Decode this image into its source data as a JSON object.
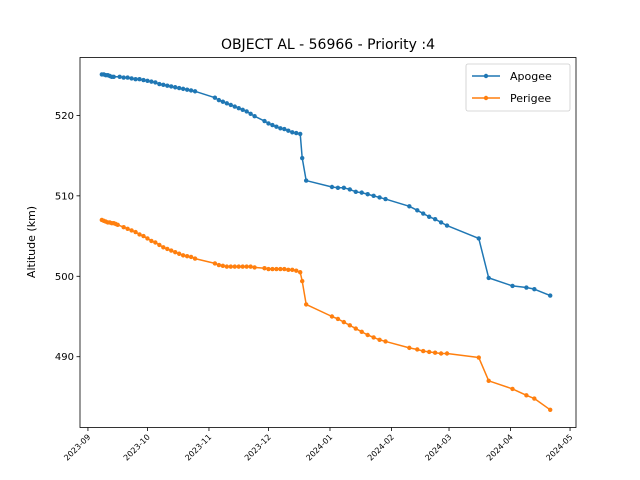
{
  "chart_data": {
    "type": "line",
    "title": "OBJECT AL - 56966 - Priority :4",
    "xlabel": "",
    "ylabel": "Altitude (km)",
    "xlim": [
      "2023-08-28",
      "2024-05-04"
    ],
    "ylim": [
      481.2,
      527.2
    ],
    "y_ticks": [
      490,
      500,
      510,
      520
    ],
    "x_ticks": [
      "2023-09",
      "2023-10",
      "2023-11",
      "2023-12",
      "2024-01",
      "2024-02",
      "2024-03",
      "2024-04",
      "2024-05"
    ],
    "legend_position": "top-right",
    "grid": false,
    "series": [
      {
        "name": "Apogee",
        "color": "#1f77b4",
        "points": [
          [
            "2023-09-08",
            525.1
          ],
          [
            "2023-09-09",
            525.1
          ],
          [
            "2023-09-10",
            525.0
          ],
          [
            "2023-09-11",
            525.0
          ],
          [
            "2023-09-12",
            524.9
          ],
          [
            "2023-09-13",
            524.8
          ],
          [
            "2023-09-14",
            524.8
          ],
          [
            "2023-09-17",
            524.8
          ],
          [
            "2023-09-19",
            524.7
          ],
          [
            "2023-09-21",
            524.7
          ],
          [
            "2023-09-23",
            524.6
          ],
          [
            "2023-09-25",
            524.5
          ],
          [
            "2023-09-27",
            524.5
          ],
          [
            "2023-09-29",
            524.4
          ],
          [
            "2023-10-01",
            524.3
          ],
          [
            "2023-10-03",
            524.2
          ],
          [
            "2023-10-05",
            524.1
          ],
          [
            "2023-10-07",
            523.9
          ],
          [
            "2023-10-09",
            523.8
          ],
          [
            "2023-10-11",
            523.7
          ],
          [
            "2023-10-13",
            523.6
          ],
          [
            "2023-10-15",
            523.5
          ],
          [
            "2023-10-17",
            523.4
          ],
          [
            "2023-10-19",
            523.3
          ],
          [
            "2023-10-21",
            523.2
          ],
          [
            "2023-10-23",
            523.1
          ],
          [
            "2023-10-25",
            523.0
          ],
          [
            "2023-11-04",
            522.2
          ],
          [
            "2023-11-06",
            521.9
          ],
          [
            "2023-11-08",
            521.7
          ],
          [
            "2023-11-10",
            521.5
          ],
          [
            "2023-11-12",
            521.3
          ],
          [
            "2023-11-14",
            521.1
          ],
          [
            "2023-11-16",
            520.9
          ],
          [
            "2023-11-18",
            520.7
          ],
          [
            "2023-11-20",
            520.5
          ],
          [
            "2023-11-22",
            520.2
          ],
          [
            "2023-11-24",
            519.9
          ],
          [
            "2023-11-29",
            519.3
          ],
          [
            "2023-12-01",
            519.0
          ],
          [
            "2023-12-03",
            518.8
          ],
          [
            "2023-12-05",
            518.6
          ],
          [
            "2023-12-07",
            518.4
          ],
          [
            "2023-12-09",
            518.3
          ],
          [
            "2023-12-11",
            518.1
          ],
          [
            "2023-12-13",
            517.9
          ],
          [
            "2023-12-15",
            517.8
          ],
          [
            "2023-12-17",
            517.7
          ],
          [
            "2023-12-18",
            514.7
          ],
          [
            "2023-12-20",
            511.9
          ],
          [
            "2024-01-02",
            511.1
          ],
          [
            "2024-01-05",
            511.0
          ],
          [
            "2024-01-08",
            511.0
          ],
          [
            "2024-01-11",
            510.8
          ],
          [
            "2024-01-14",
            510.5
          ],
          [
            "2024-01-17",
            510.4
          ],
          [
            "2024-01-20",
            510.2
          ],
          [
            "2024-01-23",
            510.0
          ],
          [
            "2024-01-26",
            509.8
          ],
          [
            "2024-01-29",
            509.6
          ],
          [
            "2024-02-10",
            508.7
          ],
          [
            "2024-02-14",
            508.2
          ],
          [
            "2024-02-17",
            507.8
          ],
          [
            "2024-02-20",
            507.4
          ],
          [
            "2024-02-23",
            507.1
          ],
          [
            "2024-02-26",
            506.7
          ],
          [
            "2024-02-29",
            506.3
          ],
          [
            "2024-03-16",
            504.7
          ],
          [
            "2024-03-21",
            499.8
          ],
          [
            "2024-04-02",
            498.8
          ],
          [
            "2024-04-09",
            498.6
          ],
          [
            "2024-04-13",
            498.4
          ],
          [
            "2024-04-21",
            497.6
          ]
        ]
      },
      {
        "name": "Perigee",
        "color": "#ff7f0e",
        "points": [
          [
            "2023-09-08",
            507.0
          ],
          [
            "2023-09-09",
            506.9
          ],
          [
            "2023-09-10",
            506.8
          ],
          [
            "2023-09-11",
            506.7
          ],
          [
            "2023-09-12",
            506.7
          ],
          [
            "2023-09-13",
            506.6
          ],
          [
            "2023-09-14",
            506.6
          ],
          [
            "2023-09-15",
            506.5
          ],
          [
            "2023-09-16",
            506.4
          ],
          [
            "2023-09-19",
            506.1
          ],
          [
            "2023-09-21",
            505.9
          ],
          [
            "2023-09-23",
            505.7
          ],
          [
            "2023-09-25",
            505.5
          ],
          [
            "2023-09-27",
            505.2
          ],
          [
            "2023-09-29",
            505.0
          ],
          [
            "2023-10-01",
            504.7
          ],
          [
            "2023-10-03",
            504.4
          ],
          [
            "2023-10-05",
            504.2
          ],
          [
            "2023-10-07",
            503.9
          ],
          [
            "2023-10-09",
            503.6
          ],
          [
            "2023-10-11",
            503.4
          ],
          [
            "2023-10-13",
            503.2
          ],
          [
            "2023-10-15",
            503.0
          ],
          [
            "2023-10-17",
            502.8
          ],
          [
            "2023-10-19",
            502.6
          ],
          [
            "2023-10-21",
            502.5
          ],
          [
            "2023-10-23",
            502.4
          ],
          [
            "2023-10-25",
            502.2
          ],
          [
            "2023-11-04",
            501.6
          ],
          [
            "2023-11-06",
            501.4
          ],
          [
            "2023-11-08",
            501.3
          ],
          [
            "2023-11-10",
            501.2
          ],
          [
            "2023-11-12",
            501.2
          ],
          [
            "2023-11-14",
            501.2
          ],
          [
            "2023-11-16",
            501.2
          ],
          [
            "2023-11-18",
            501.2
          ],
          [
            "2023-11-20",
            501.2
          ],
          [
            "2023-11-22",
            501.2
          ],
          [
            "2023-11-24",
            501.1
          ],
          [
            "2023-11-29",
            501.0
          ],
          [
            "2023-12-01",
            500.9
          ],
          [
            "2023-12-03",
            500.9
          ],
          [
            "2023-12-05",
            500.9
          ],
          [
            "2023-12-07",
            500.9
          ],
          [
            "2023-12-09",
            500.9
          ],
          [
            "2023-12-11",
            500.8
          ],
          [
            "2023-12-13",
            500.8
          ],
          [
            "2023-12-15",
            500.7
          ],
          [
            "2023-12-17",
            500.5
          ],
          [
            "2023-12-18",
            499.4
          ],
          [
            "2023-12-20",
            496.5
          ],
          [
            "2024-01-02",
            495.0
          ],
          [
            "2024-01-05",
            494.7
          ],
          [
            "2024-01-08",
            494.3
          ],
          [
            "2024-01-11",
            493.9
          ],
          [
            "2024-01-14",
            493.5
          ],
          [
            "2024-01-17",
            493.1
          ],
          [
            "2024-01-20",
            492.7
          ],
          [
            "2024-01-23",
            492.4
          ],
          [
            "2024-01-26",
            492.1
          ],
          [
            "2024-01-29",
            491.9
          ],
          [
            "2024-02-10",
            491.1
          ],
          [
            "2024-02-14",
            490.9
          ],
          [
            "2024-02-17",
            490.7
          ],
          [
            "2024-02-20",
            490.6
          ],
          [
            "2024-02-23",
            490.5
          ],
          [
            "2024-02-26",
            490.4
          ],
          [
            "2024-02-29",
            490.4
          ],
          [
            "2024-03-16",
            489.9
          ],
          [
            "2024-03-21",
            487.0
          ],
          [
            "2024-04-02",
            486.0
          ],
          [
            "2024-04-09",
            485.2
          ],
          [
            "2024-04-13",
            484.8
          ],
          [
            "2024-04-21",
            483.4
          ]
        ]
      }
    ]
  }
}
